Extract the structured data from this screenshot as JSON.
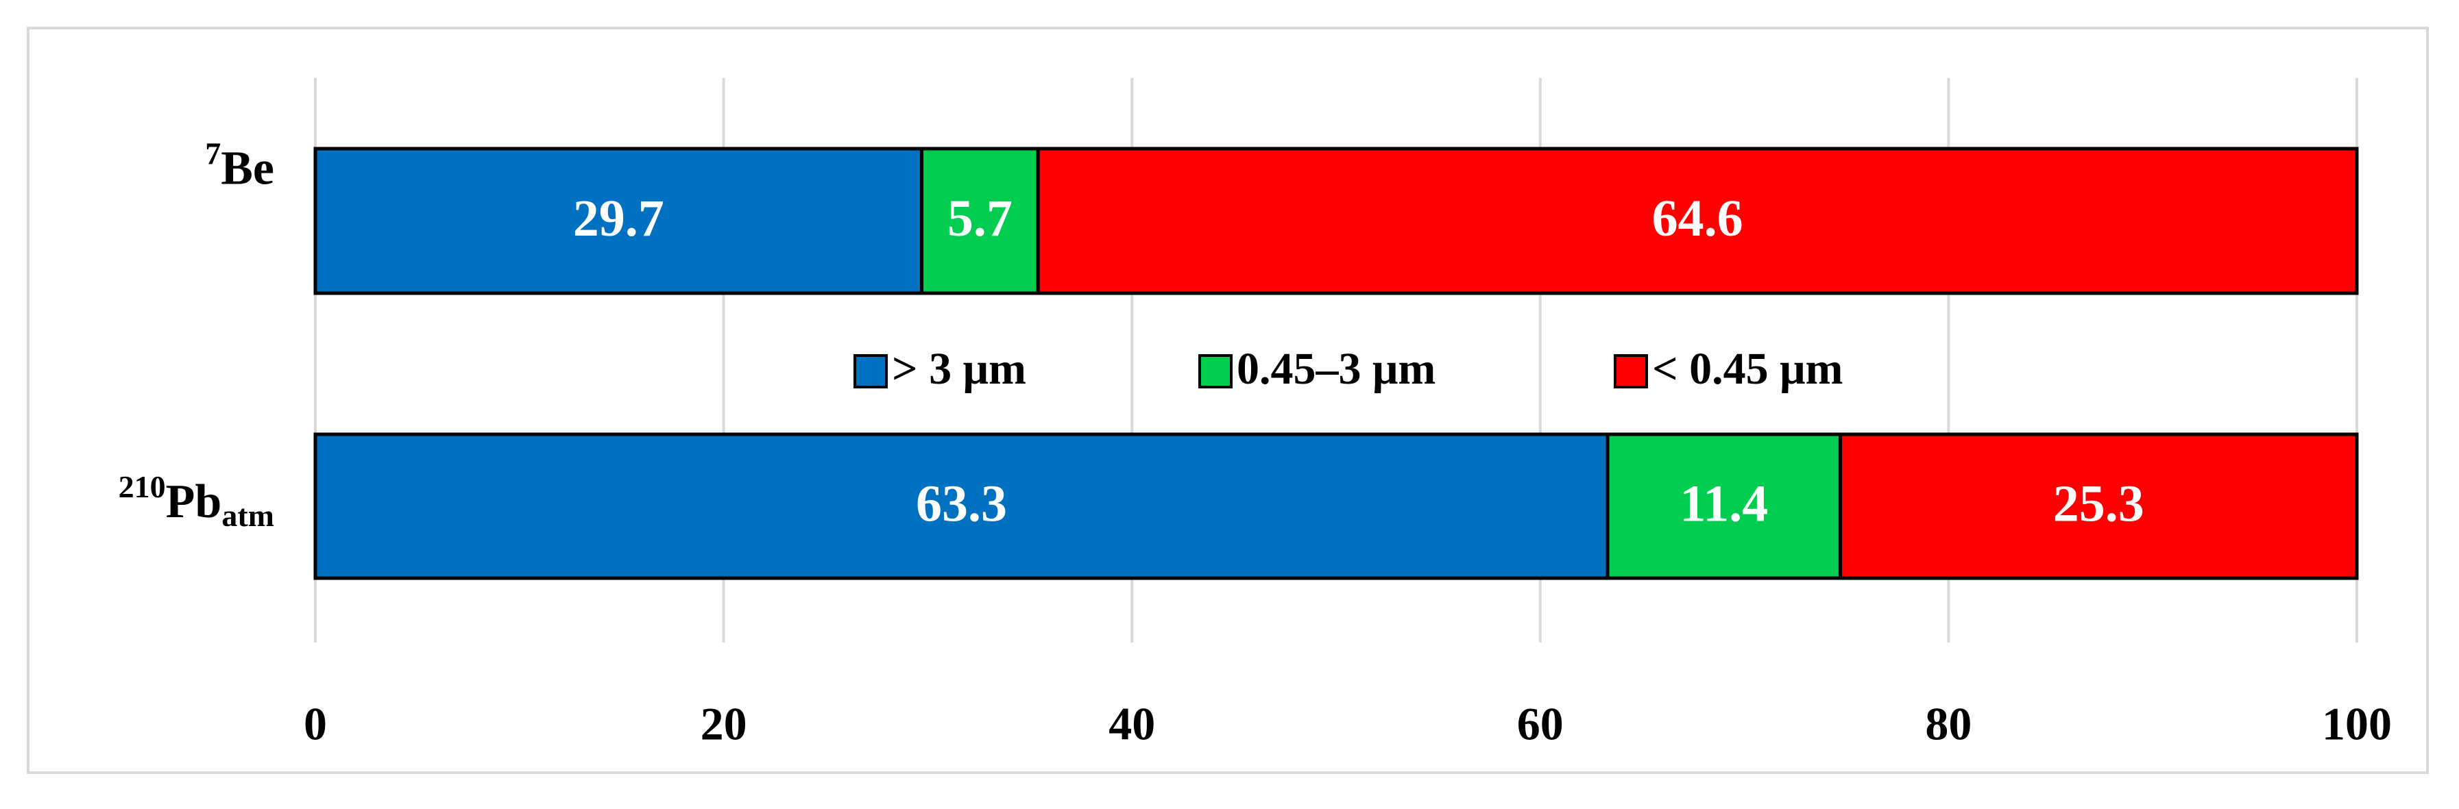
{
  "chart_data": {
    "type": "stacked-barh",
    "categories": [
      {
        "sup": "7",
        "text": "Be"
      },
      {
        "sup": "210",
        "text": "Pb",
        "sub": "atm"
      }
    ],
    "series": [
      {
        "name": "> 3 μm",
        "color": "#0070c0",
        "values": [
          29.7,
          63.3
        ]
      },
      {
        "name": "0.45–3 μm",
        "color": "#00cc50",
        "values": [
          5.7,
          11.4
        ]
      },
      {
        "name": "< 0.45 μm",
        "color": "#ff0000",
        "values": [
          64.6,
          25.3
        ]
      }
    ],
    "xlim": [
      0,
      100
    ],
    "xticks": [
      0,
      20,
      40,
      60,
      80,
      100
    ],
    "grid": true
  }
}
